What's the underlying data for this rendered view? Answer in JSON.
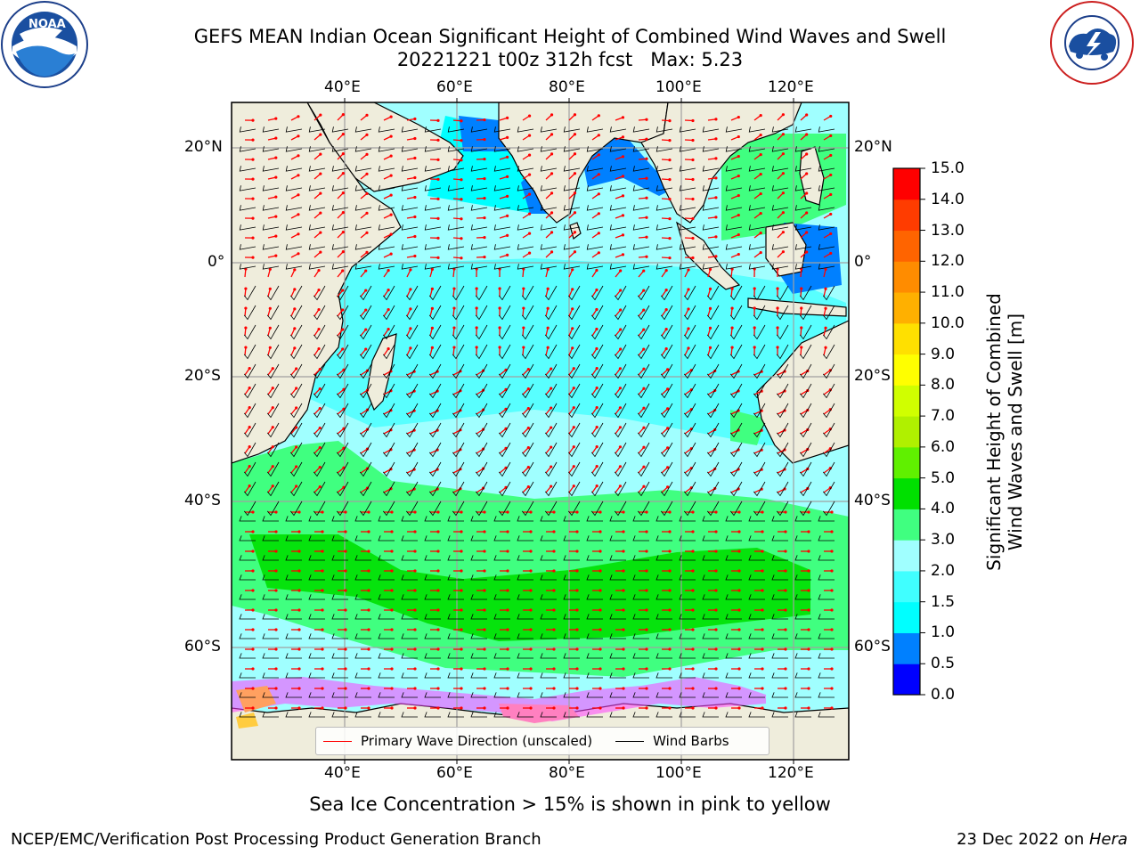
{
  "header": {
    "title_line1": "GEFS MEAN Indian Ocean Significant Height of Combined Wind Waves and Swell",
    "title_line2": "20221221 t00z 312h fcst   Max: 5.23"
  },
  "logos": {
    "left": {
      "icon": "noaa-logo",
      "text": "NOAA",
      "ring_text": "NATIONAL OCEANIC AND ATMOSPHERIC ADMINISTRATION · U.S. DEPARTMENT OF COMMERCE"
    },
    "right": {
      "icon": "nws-logo",
      "ring_text": "NATIONAL WEATHER SERVICE"
    }
  },
  "map": {
    "lon_labels": [
      "40°E",
      "60°E",
      "80°E",
      "100°E",
      "120°E"
    ],
    "lat_labels": [
      "20°N",
      "0°",
      "20°S",
      "40°S",
      "60°S"
    ],
    "legend": {
      "wave_direction": "Primary Wave Direction (unscaled)",
      "wind_barbs": "Wind Barbs",
      "wave_color": "#ff0000",
      "barb_color": "#000000"
    },
    "land_color": "#efeddc"
  },
  "colorbar": {
    "label_line1": "Significant Height of Combined",
    "label_line2": "Wind Waves and Swell [m]",
    "ticks": [
      "0.0",
      "0.5",
      "1.0",
      "1.5",
      "2.0",
      "3.0",
      "4.0",
      "5.0",
      "6.0",
      "7.0",
      "8.0",
      "9.0",
      "10.0",
      "11.0",
      "12.0",
      "13.0",
      "14.0",
      "15.0"
    ],
    "colors": [
      "#0000ff",
      "#0080ff",
      "#00ffff",
      "#40ffff",
      "#a0ffff",
      "#40ff80",
      "#00e000",
      "#60f000",
      "#b0f000",
      "#d0ff00",
      "#ffff00",
      "#ffe000",
      "#ffb000",
      "#ff8c00",
      "#ff6400",
      "#ff3c00",
      "#ff0000"
    ]
  },
  "sea_ice_note": "Sea Ice Concentration > 15% is shown in pink to yellow",
  "footer": {
    "left": "NCEP/EMC/Verification Post Processing Product Generation Branch",
    "right_prefix": "23 Dec 2022 on ",
    "right_host": "Hera"
  }
}
